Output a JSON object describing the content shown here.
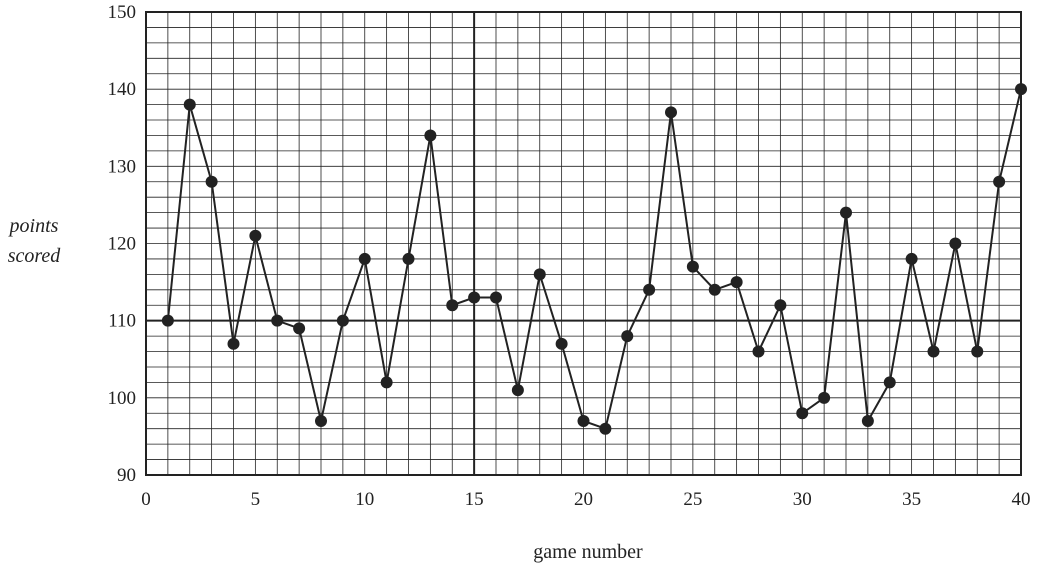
{
  "chart_data": {
    "type": "line",
    "title": "",
    "xlabel": "game number",
    "ylabel_lines": [
      "points",
      "scored"
    ],
    "xlim": [
      0,
      40
    ],
    "ylim": [
      90,
      150
    ],
    "x_ticks": [
      0,
      5,
      10,
      15,
      20,
      25,
      30,
      35,
      40
    ],
    "y_ticks": [
      90,
      100,
      110,
      120,
      130,
      140,
      150
    ],
    "minor_grid": {
      "x_step": 1,
      "y_step": 2
    },
    "major_grid": {
      "x_value": 15,
      "y_value": 110
    },
    "grid": true,
    "line_color": "#222222",
    "grid_color": "#222222",
    "series": [
      {
        "x": [
          1,
          2,
          3,
          4,
          5,
          6,
          7,
          8,
          9,
          10,
          11,
          12,
          13,
          14,
          15,
          16,
          17,
          18,
          19,
          20,
          21,
          22,
          23,
          24,
          25,
          26,
          27,
          28,
          29,
          30,
          31,
          32,
          33,
          34,
          35,
          36,
          37,
          38,
          39,
          40
        ],
        "values": [
          110,
          138,
          128,
          107,
          121,
          110,
          109,
          97,
          110,
          118,
          102,
          118,
          134,
          112,
          113,
          113,
          101,
          116,
          107,
          97,
          96,
          108,
          114,
          137,
          117,
          114,
          115,
          106,
          112,
          98,
          100,
          124,
          97,
          102,
          118,
          106,
          120,
          106,
          128,
          140
        ]
      }
    ]
  }
}
